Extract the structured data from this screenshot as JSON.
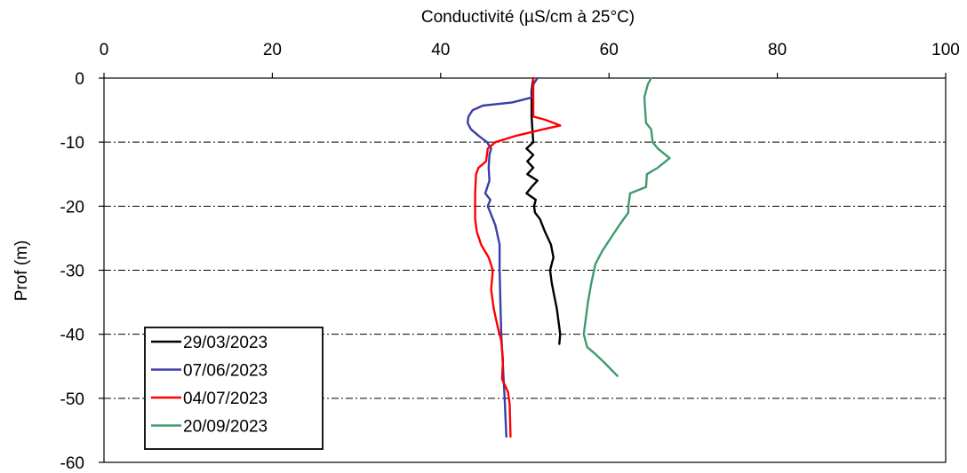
{
  "chart_data": {
    "type": "line",
    "xlabel": "Conductivité (µS/cm à 25°C)",
    "ylabel": "Prof (m)",
    "xlim": [
      0,
      100
    ],
    "ylim": [
      -60,
      0
    ],
    "x_ticks": [
      "0",
      "20",
      "40",
      "60",
      "80",
      "100"
    ],
    "y_ticks": [
      "0",
      "-10",
      "-20",
      "-30",
      "-40",
      "-50",
      "-60"
    ],
    "grid": "horizontal-dashed",
    "legend_position": "bottom-left",
    "series": [
      {
        "name": "29/03/2023",
        "color": "#000000",
        "points": [
          [
            51.0,
            0
          ],
          [
            50.8,
            -2
          ],
          [
            50.8,
            -4
          ],
          [
            50.8,
            -6
          ],
          [
            50.9,
            -8
          ],
          [
            51.0,
            -10
          ],
          [
            50.2,
            -11
          ],
          [
            51.0,
            -12
          ],
          [
            50.3,
            -13
          ],
          [
            51.0,
            -14
          ],
          [
            50.3,
            -15
          ],
          [
            51.5,
            -16
          ],
          [
            50.8,
            -17
          ],
          [
            50.2,
            -18
          ],
          [
            51.3,
            -19
          ],
          [
            51.1,
            -20
          ],
          [
            51.2,
            -21
          ],
          [
            51.8,
            -22
          ],
          [
            52.4,
            -24
          ],
          [
            53.1,
            -26
          ],
          [
            53.4,
            -28
          ],
          [
            53.0,
            -30
          ],
          [
            53.2,
            -32
          ],
          [
            53.5,
            -34
          ],
          [
            53.8,
            -36
          ],
          [
            54.0,
            -38
          ],
          [
            54.2,
            -40
          ],
          [
            54.1,
            -41.5
          ]
        ]
      },
      {
        "name": "07/06/2023",
        "color": "#3d3da8",
        "points": [
          [
            51.5,
            0
          ],
          [
            51.0,
            -1
          ],
          [
            50.9,
            -2
          ],
          [
            50.9,
            -3
          ],
          [
            48.5,
            -3.8
          ],
          [
            45.0,
            -4.3
          ],
          [
            43.8,
            -5
          ],
          [
            43.3,
            -6
          ],
          [
            43.2,
            -7
          ],
          [
            43.6,
            -8
          ],
          [
            44.5,
            -9
          ],
          [
            45.5,
            -10
          ],
          [
            46.0,
            -11
          ],
          [
            45.8,
            -12
          ],
          [
            45.7,
            -14
          ],
          [
            45.8,
            -16
          ],
          [
            45.3,
            -18
          ],
          [
            45.9,
            -19
          ],
          [
            45.6,
            -20
          ],
          [
            45.9,
            -21
          ],
          [
            46.5,
            -23
          ],
          [
            47.0,
            -26
          ],
          [
            47.0,
            -30
          ],
          [
            47.1,
            -35
          ],
          [
            47.2,
            -40
          ],
          [
            47.4,
            -45
          ],
          [
            47.6,
            -50
          ],
          [
            47.8,
            -56
          ]
        ]
      },
      {
        "name": "04/07/2023",
        "color": "#ff0000",
        "points": [
          [
            51.0,
            0
          ],
          [
            51.0,
            -2
          ],
          [
            51.0,
            -4
          ],
          [
            51.0,
            -6
          ],
          [
            52.4,
            -6.5
          ],
          [
            54.2,
            -7.4
          ],
          [
            52.2,
            -8
          ],
          [
            49.0,
            -9
          ],
          [
            46.5,
            -10
          ],
          [
            45.6,
            -11
          ],
          [
            45.4,
            -13
          ],
          [
            44.5,
            -14
          ],
          [
            44.2,
            -15
          ],
          [
            44.1,
            -18
          ],
          [
            44.1,
            -22
          ],
          [
            44.3,
            -24
          ],
          [
            44.8,
            -26
          ],
          [
            45.7,
            -28
          ],
          [
            46.2,
            -30
          ],
          [
            46.0,
            -33
          ],
          [
            46.3,
            -36
          ],
          [
            46.8,
            -39
          ],
          [
            47.2,
            -41
          ],
          [
            47.4,
            -44
          ],
          [
            47.3,
            -47
          ],
          [
            48.0,
            -49
          ],
          [
            48.2,
            -51
          ],
          [
            48.3,
            -56
          ]
        ]
      },
      {
        "name": "20/09/2023",
        "color": "#3e9b6e",
        "points": [
          [
            65.0,
            0
          ],
          [
            64.6,
            -1
          ],
          [
            64.2,
            -3
          ],
          [
            64.3,
            -5
          ],
          [
            64.4,
            -7
          ],
          [
            65.0,
            -8
          ],
          [
            65.2,
            -10
          ],
          [
            65.8,
            -11
          ],
          [
            67.2,
            -12.5
          ],
          [
            65.8,
            -14
          ],
          [
            64.5,
            -15
          ],
          [
            64.4,
            -17
          ],
          [
            62.5,
            -18
          ],
          [
            62.3,
            -20
          ],
          [
            62.3,
            -21
          ],
          [
            61.2,
            -23
          ],
          [
            60.2,
            -25
          ],
          [
            59.2,
            -27
          ],
          [
            58.4,
            -29
          ],
          [
            57.9,
            -32
          ],
          [
            57.5,
            -35
          ],
          [
            57.2,
            -38
          ],
          [
            57.0,
            -40
          ],
          [
            57.4,
            -42
          ],
          [
            58.3,
            -43
          ],
          [
            59.5,
            -44.5
          ],
          [
            61.0,
            -46.5
          ]
        ]
      }
    ]
  }
}
